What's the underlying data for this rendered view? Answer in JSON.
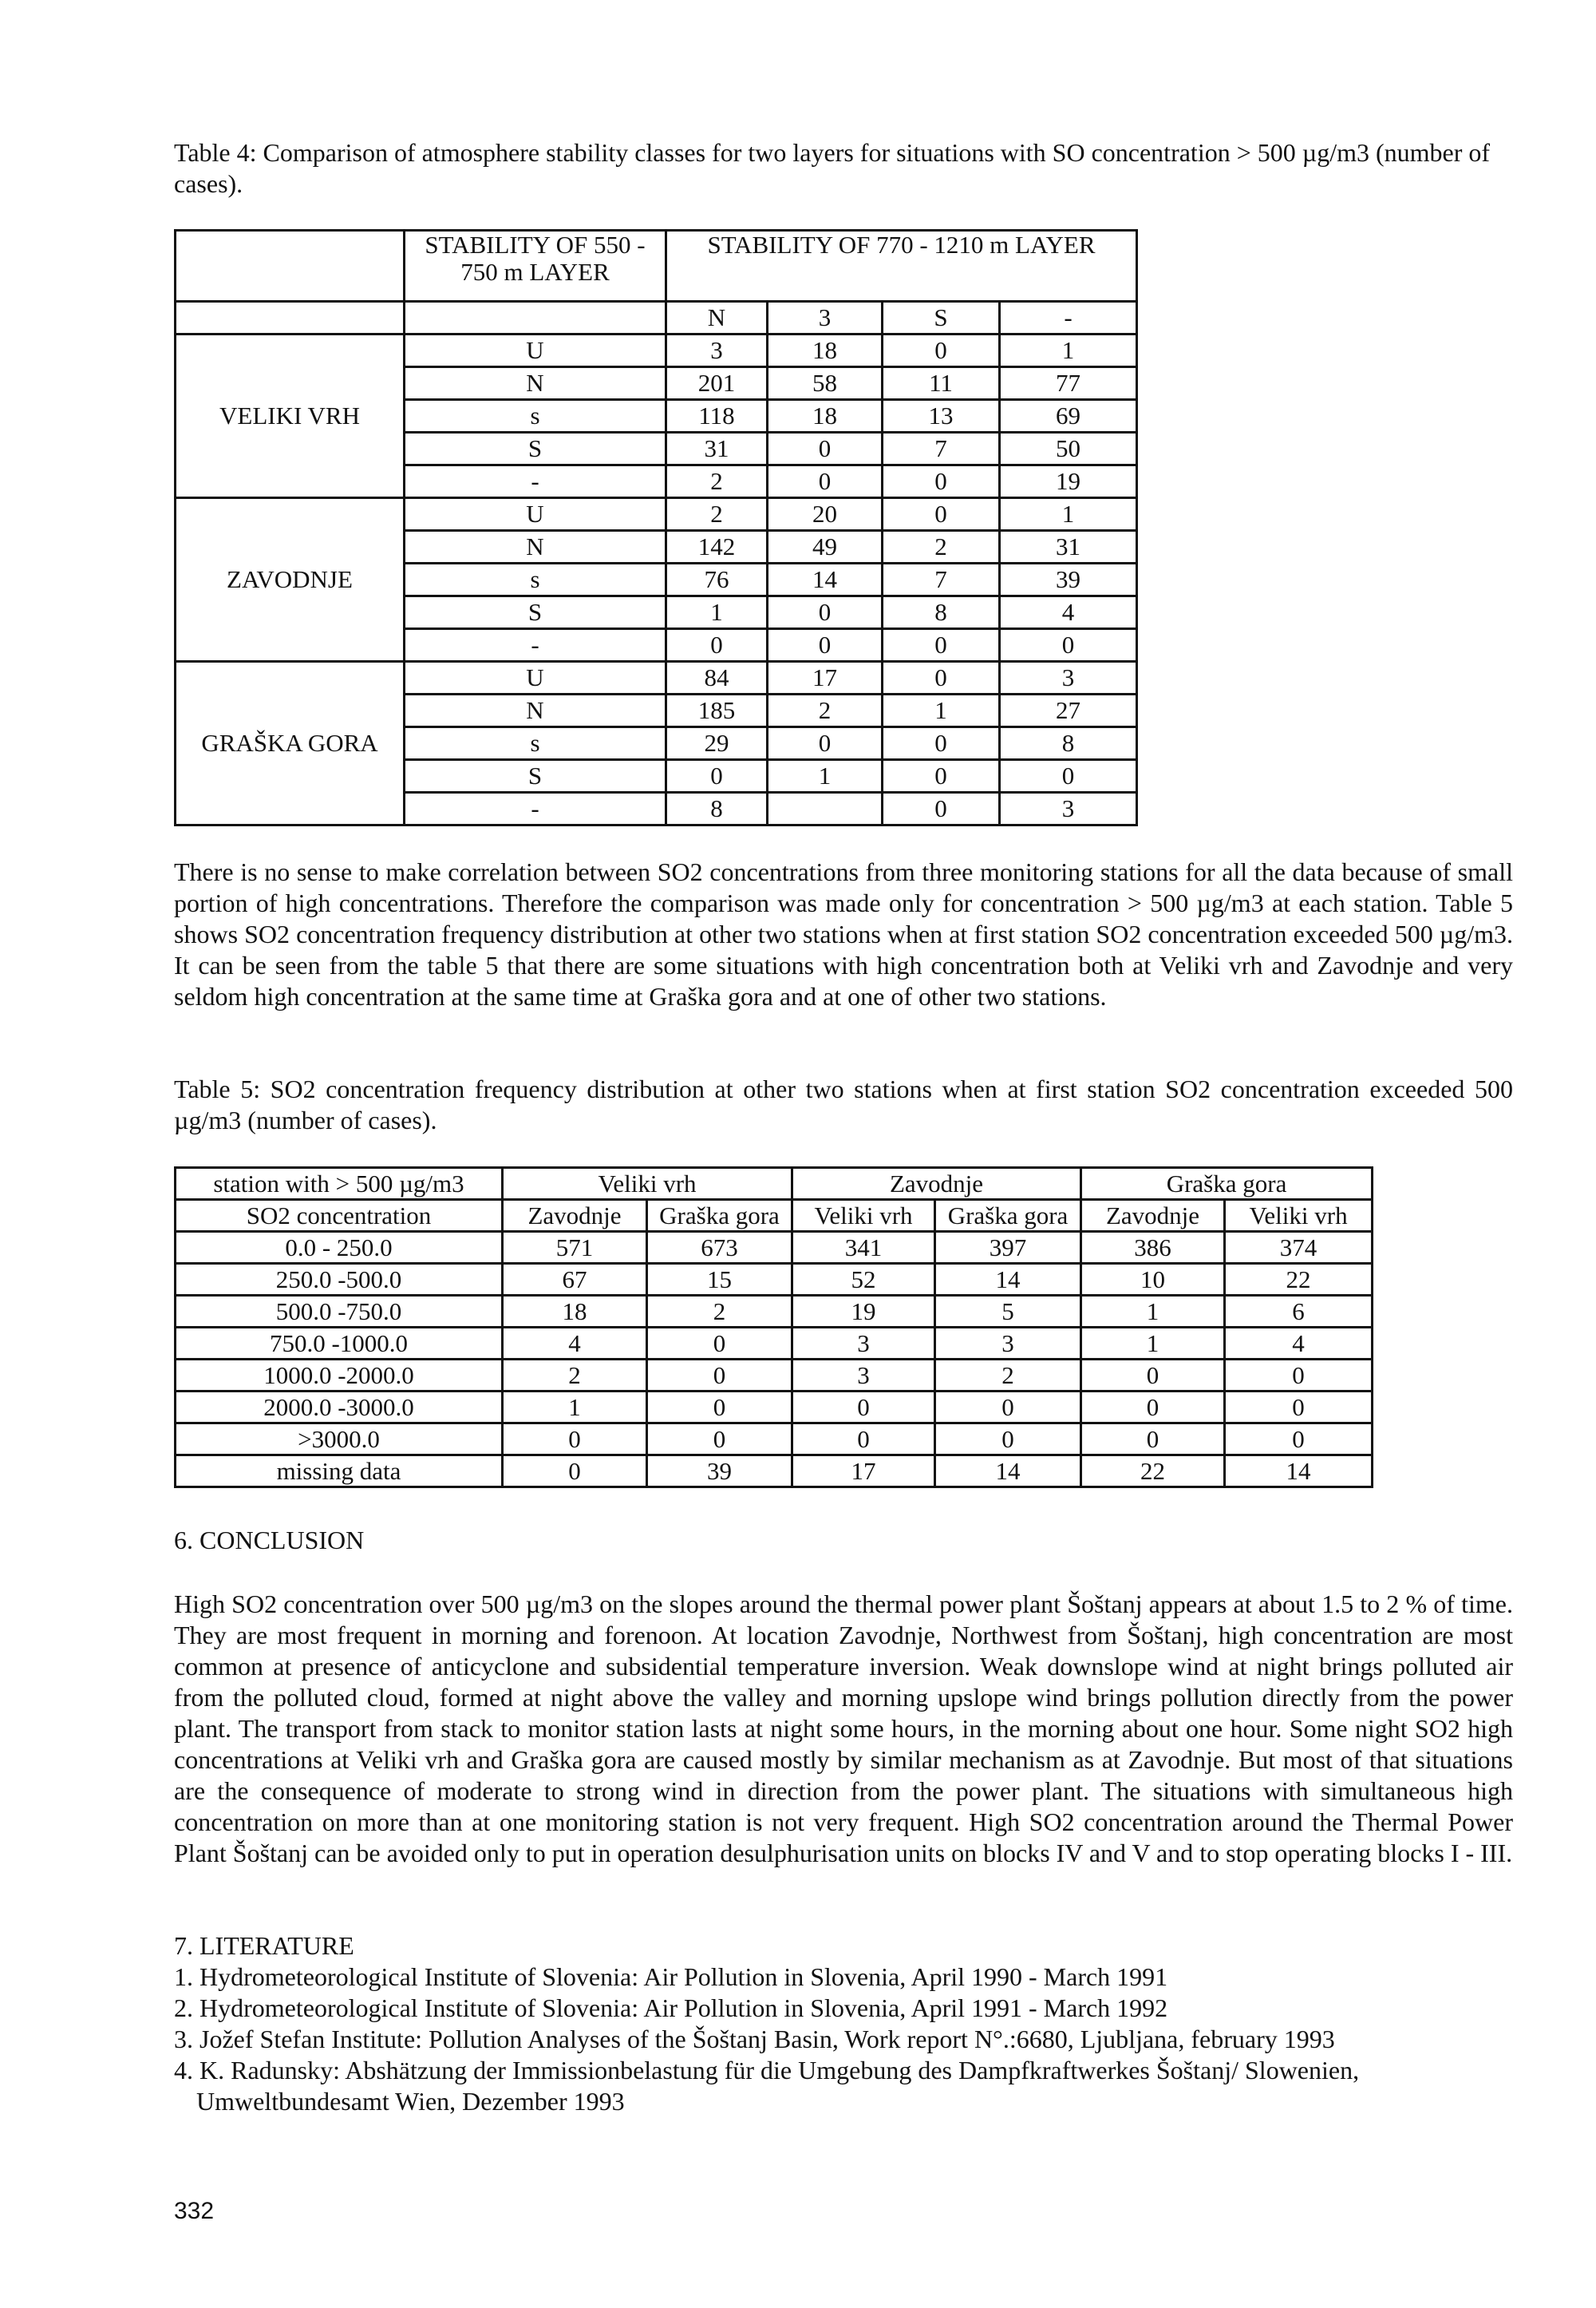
{
  "table4": {
    "caption": "Table 4: Comparison of atmosphere stability classes for two layers for situations with SO concentration > 500 µg/m3 (number of cases).",
    "header_lower": "STABILITY OF 550 - 750 m LAYER",
    "header_upper": "STABILITY OF 770 - 1210 m LAYER",
    "upper_classes": [
      "N",
      "3",
      "S",
      "-"
    ],
    "stations": [
      {
        "name": "VELIKI VRH",
        "rows": [
          {
            "class": "U",
            "values": [
              "3",
              "18",
              "0",
              "1"
            ]
          },
          {
            "class": "N",
            "values": [
              "201",
              "58",
              "11",
              "77"
            ]
          },
          {
            "class": "s",
            "values": [
              "118",
              "18",
              "13",
              "69"
            ]
          },
          {
            "class": "S",
            "values": [
              "31",
              "0",
              "7",
              "50"
            ]
          },
          {
            "class": "-",
            "values": [
              "2",
              "0",
              "0",
              "19"
            ]
          }
        ]
      },
      {
        "name": "ZAVODNJE",
        "rows": [
          {
            "class": "U",
            "values": [
              "2",
              "20",
              "0",
              "1"
            ]
          },
          {
            "class": "N",
            "values": [
              "142",
              "49",
              "2",
              "31"
            ]
          },
          {
            "class": "s",
            "values": [
              "76",
              "14",
              "7",
              "39"
            ]
          },
          {
            "class": "S",
            "values": [
              "1",
              "0",
              "8",
              "4"
            ]
          },
          {
            "class": "-",
            "values": [
              "0",
              "0",
              "0",
              "0"
            ]
          }
        ]
      },
      {
        "name": "GRAŠKA GORA",
        "rows": [
          {
            "class": "U",
            "values": [
              "84",
              "17",
              "0",
              "3"
            ]
          },
          {
            "class": "N",
            "values": [
              "185",
              "2",
              "1",
              "27"
            ]
          },
          {
            "class": "s",
            "values": [
              "29",
              "0",
              "0",
              "8"
            ]
          },
          {
            "class": "S",
            "values": [
              "0",
              "1",
              "0",
              "0"
            ]
          },
          {
            "class": "-",
            "values": [
              "8",
              "",
              "0",
              "3"
            ]
          }
        ]
      }
    ]
  },
  "paragraph1": "There is no sense to make correlation between SO2 concentrations from three monitoring stations for all the data because of small portion of high concentrations. Therefore the comparison was made only for concentration > 500 µg/m3 at each station. Table 5 shows SO2 concentration frequency distribution at other two stations when at first station SO2 concentration exceeded 500 µg/m3. It can be seen from the table 5 that there are some situations with high concentration both at Veliki vrh and Zavodnje and very seldom high concentration at the same time at Graška gora and at one of other two stations.",
  "table5": {
    "caption": "Table 5: SO2 concentration frequency distribution at other two stations when at first station SO2 concentration exceeded 500 µg/m3 (number of cases).",
    "corner_top": "station with > 500 µg/m3",
    "corner_bottom": "SO2 concentration",
    "groups": [
      {
        "name": "Veliki vrh",
        "subs": [
          "Zavodnje",
          "Graška gora"
        ]
      },
      {
        "name": "Zavodnje",
        "subs": [
          "Veliki vrh",
          "Graška gora"
        ]
      },
      {
        "name": "Graška gora",
        "subs": [
          "Zavodnje",
          "Veliki vrh"
        ]
      }
    ],
    "rows": [
      {
        "range": "0.0 - 250.0",
        "values": [
          "571",
          "673",
          "341",
          "397",
          "386",
          "374"
        ]
      },
      {
        "range": "250.0 -500.0",
        "values": [
          "67",
          "15",
          "52",
          "14",
          "10",
          "22"
        ]
      },
      {
        "range": "500.0 -750.0",
        "values": [
          "18",
          "2",
          "19",
          "5",
          "1",
          "6"
        ]
      },
      {
        "range": "750.0 -1000.0",
        "values": [
          "4",
          "0",
          "3",
          "3",
          "1",
          "4"
        ]
      },
      {
        "range": "1000.0 -2000.0",
        "values": [
          "2",
          "0",
          "3",
          "2",
          "0",
          "0"
        ]
      },
      {
        "range": "2000.0 -3000.0",
        "values": [
          "1",
          "0",
          "0",
          "0",
          "0",
          "0"
        ]
      },
      {
        "range": ">3000.0",
        "values": [
          "0",
          "0",
          "0",
          "0",
          "0",
          "0"
        ]
      },
      {
        "range": "missing data",
        "values": [
          "0",
          "39",
          "17",
          "14",
          "22",
          "14"
        ]
      }
    ]
  },
  "conclusion": {
    "heading": "6. CONCLUSION",
    "text": "High SO2 concentration over 500 µg/m3 on the slopes around the thermal power plant Šoštanj appears at about 1.5 to 2 % of time. They are most frequent in morning and forenoon. At location Zavodnje, Northwest from Šoštanj, high concentration are most common at presence of anticyclone and subsidential temperature inversion. Weak downslope wind at night brings polluted air from the polluted cloud, formed at night above the valley and morning upslope wind brings pollution directly from the power plant. The transport from stack to monitor station lasts at night some hours, in the morning about one hour. Some night SO2 high concentrations at Veliki vrh and Graška gora are caused mostly by similar mechanism as at Zavodnje. But most of that situations are the consequence of moderate to strong wind in direction from the power plant. The situations with simultaneous high concentration on more than at one monitoring station is not very frequent. High SO2 concentration around the Thermal Power Plant Šoštanj can be avoided only to put in operation desulphurisation units on blocks IV and V and to stop operating blocks I - III."
  },
  "literature": {
    "heading": "7. LITERATURE",
    "items": [
      "1. Hydrometeorological Institute of Slovenia: Air Pollution in Slovenia, April 1990 - March 1991",
      "2. Hydrometeorological Institute of Slovenia: Air Pollution in Slovenia, April 1991 - March 1992",
      "3. Jožef Stefan Institute: Pollution Analyses of the Šoštanj Basin, Work report N°.:6680, Ljubljana, february 1993",
      "4. K. Radunsky: Abshätzung der Immissionbelastung für die Umgebung des Dampfkraftwerkes Šoštanj/ Slowenien, Umweltbundesamt Wien, Dezember 1993"
    ]
  },
  "page_number": "332"
}
